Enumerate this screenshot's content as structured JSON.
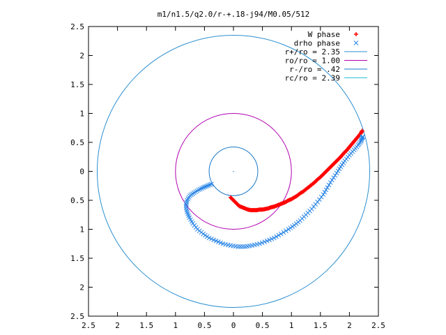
{
  "chart_data": {
    "type": "scatter",
    "title": "m1/n1.5/q2.0/r-+.18-j94/M0.05/512",
    "xlabel": "",
    "ylabel": "",
    "xlim": [
      -2.5,
      2.5
    ],
    "ylim": [
      -2.5,
      2.5
    ],
    "xtick_values": [
      -2.5,
      -2,
      -1.5,
      -1,
      -0.5,
      0,
      0.5,
      1,
      1.5,
      2,
      2.5
    ],
    "xtick_labels": [
      "2.5",
      "2",
      "1.5",
      "1",
      "0.5",
      "0",
      "0.5",
      "1",
      "1.5",
      "2",
      "2.5"
    ],
    "ytick_values": [
      2.5,
      2,
      1.5,
      1,
      0.5,
      0,
      -0.5,
      -1,
      -1.5,
      -2,
      -2.5
    ],
    "ytick_labels": [
      "2.5",
      "2",
      "1.5",
      "1",
      "0.5",
      "0",
      "0.5",
      "1",
      "1.5",
      "2",
      "2.5"
    ],
    "grid": false,
    "legend_position": "top-right",
    "legend": [
      {
        "label": "W phase",
        "marker": "+",
        "color": "#ff0000"
      },
      {
        "label": "drho phase",
        "marker": "x",
        "color": "#2a86e6"
      },
      {
        "label": "r+/ro = 2.35",
        "marker": "line",
        "color": "#2a8fd0"
      },
      {
        "label": "ro/ro = 1.00",
        "marker": "line",
        "color": "#b000b0"
      },
      {
        "label": "r-/ro = .42",
        "marker": "line",
        "color": "#1a78c8"
      },
      {
        "label": "rc/ro = 2.39",
        "marker": "line",
        "color": "#2ac0d0"
      }
    ],
    "circles": [
      {
        "name": "r+/ro",
        "radius": 2.35,
        "color": "#2a8fd0"
      },
      {
        "name": "ro/ro",
        "radius": 1.0,
        "color": "#b000b0"
      },
      {
        "name": "r-/ro",
        "radius": 0.42,
        "color": "#1a78c8"
      }
    ],
    "series": [
      {
        "name": "W phase",
        "marker": "+",
        "color": "#ff0000",
        "points": [
          [
            -0.05,
            -0.45
          ],
          [
            0.0,
            -0.5
          ],
          [
            0.05,
            -0.55
          ],
          [
            0.1,
            -0.6
          ],
          [
            0.15,
            -0.62
          ],
          [
            0.2,
            -0.64
          ],
          [
            0.25,
            -0.66
          ],
          [
            0.3,
            -0.67
          ],
          [
            0.35,
            -0.67
          ],
          [
            0.4,
            -0.67
          ],
          [
            0.45,
            -0.66
          ],
          [
            0.5,
            -0.66
          ],
          [
            0.55,
            -0.65
          ],
          [
            0.6,
            -0.64
          ],
          [
            0.65,
            -0.62
          ],
          [
            0.7,
            -0.61
          ],
          [
            0.75,
            -0.59
          ],
          [
            0.8,
            -0.57
          ],
          [
            0.85,
            -0.55
          ],
          [
            0.9,
            -0.53
          ],
          [
            0.95,
            -0.5
          ],
          [
            1.0,
            -0.48
          ],
          [
            1.05,
            -0.45
          ],
          [
            1.1,
            -0.42
          ],
          [
            1.15,
            -0.38
          ],
          [
            1.2,
            -0.35
          ],
          [
            1.25,
            -0.31
          ],
          [
            1.3,
            -0.27
          ],
          [
            1.35,
            -0.23
          ],
          [
            1.4,
            -0.19
          ],
          [
            1.45,
            -0.14
          ],
          [
            1.5,
            -0.1
          ],
          [
            1.55,
            -0.05
          ],
          [
            1.6,
            0.0
          ],
          [
            1.65,
            0.05
          ],
          [
            1.7,
            0.1
          ],
          [
            1.75,
            0.15
          ],
          [
            1.8,
            0.2
          ],
          [
            1.85,
            0.25
          ],
          [
            1.9,
            0.31
          ],
          [
            1.95,
            0.36
          ],
          [
            2.0,
            0.42
          ],
          [
            2.05,
            0.48
          ],
          [
            2.1,
            0.54
          ],
          [
            2.15,
            0.6
          ],
          [
            2.2,
            0.66
          ],
          [
            2.22,
            0.7
          ]
        ]
      },
      {
        "name": "drho phase",
        "marker": "x",
        "color": "#2a86e6",
        "points": [
          [
            -0.38,
            -0.22
          ],
          [
            -0.45,
            -0.25
          ],
          [
            -0.52,
            -0.28
          ],
          [
            -0.6,
            -0.32
          ],
          [
            -0.68,
            -0.37
          ],
          [
            -0.75,
            -0.42
          ],
          [
            -0.8,
            -0.5
          ],
          [
            -0.82,
            -0.6
          ],
          [
            -0.8,
            -0.7
          ],
          [
            -0.76,
            -0.8
          ],
          [
            -0.7,
            -0.9
          ],
          [
            -0.62,
            -1.0
          ],
          [
            -0.52,
            -1.08
          ],
          [
            -0.42,
            -1.15
          ],
          [
            -0.3,
            -1.2
          ],
          [
            -0.18,
            -1.25
          ],
          [
            -0.05,
            -1.28
          ],
          [
            0.08,
            -1.3
          ],
          [
            0.2,
            -1.3
          ],
          [
            0.32,
            -1.28
          ],
          [
            0.45,
            -1.25
          ],
          [
            0.58,
            -1.2
          ],
          [
            0.7,
            -1.15
          ],
          [
            0.82,
            -1.08
          ],
          [
            0.95,
            -1.0
          ],
          [
            1.05,
            -0.93
          ],
          [
            1.15,
            -0.85
          ],
          [
            1.25,
            -0.75
          ],
          [
            1.35,
            -0.65
          ],
          [
            1.45,
            -0.53
          ],
          [
            1.55,
            -0.4
          ],
          [
            1.62,
            -0.28
          ],
          [
            1.7,
            -0.15
          ],
          [
            1.78,
            -0.03
          ],
          [
            1.85,
            0.08
          ],
          [
            1.92,
            0.18
          ],
          [
            2.0,
            0.28
          ],
          [
            2.08,
            0.37
          ],
          [
            2.15,
            0.45
          ],
          [
            2.2,
            0.52
          ],
          [
            2.22,
            0.58
          ],
          [
            2.23,
            0.6
          ]
        ]
      }
    ]
  }
}
